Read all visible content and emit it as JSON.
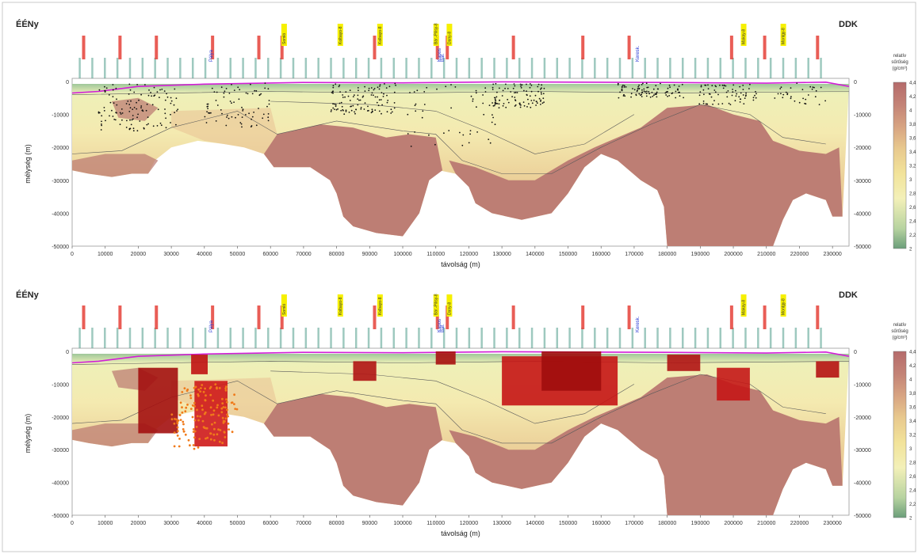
{
  "chart_data": [
    {
      "type": "heatmap",
      "title": "",
      "corner_left": "ÉÉNy",
      "corner_right": "DDK",
      "xlabel": "távolság (m)",
      "ylabel": "mélység (m)",
      "xlim": [
        0,
        235000
      ],
      "ylim": [
        -50000,
        0
      ],
      "xticks": [
        "0",
        "10000",
        "20000",
        "30000",
        "40000",
        "50000",
        "60000",
        "70000",
        "80000",
        "90000",
        "100000",
        "110000",
        "120000",
        "130000",
        "140000",
        "150000",
        "160000",
        "170000",
        "180000",
        "190000",
        "200000",
        "210000",
        "220000",
        "230000"
      ],
      "yticks_left": [
        "0",
        "-10000",
        "-20000",
        "-30000",
        "-40000",
        "-50000"
      ],
      "yticks_right": [
        "0",
        "-10000",
        "-20000",
        "-30000",
        "-40000",
        "-50000"
      ],
      "colorbar": {
        "title": "relatív sűrűség (g/cm³)",
        "ticks": [
          "4,4",
          "4,2",
          "4",
          "3,8",
          "3,6",
          "3,4",
          "3,2",
          "3",
          "2,8",
          "2,6",
          "2,4",
          "2,2",
          "2"
        ],
        "colors": [
          "#6b9e7a",
          "#b7d3a0",
          "#f3f0b8",
          "#f2e39a",
          "#e8c98e",
          "#d9a783",
          "#c48477",
          "#b56b6b"
        ]
      },
      "overlay": "earthquake hypocenters",
      "yellow_labels": [
        "Somló",
        "Kolbayo-8",
        "Kolbayo-8",
        "Bár.-Pilisy-8",
        "Dany-8",
        "Makay-8",
        "Montgy-8"
      ],
      "blue_labels": [
        "Pálya",
        "Bár.",
        "Keresk.",
        "Kapos"
      ]
    },
    {
      "type": "heatmap",
      "title": "",
      "corner_left": "ÉÉNy",
      "corner_right": "DDK",
      "xlabel": "távolság (m)",
      "ylabel": "mélység (m)",
      "xlim": [
        0,
        235000
      ],
      "ylim": [
        -50000,
        0
      ],
      "xticks": [
        "0",
        "10000",
        "20000",
        "30000",
        "40000",
        "50000",
        "60000",
        "70000",
        "80000",
        "90000",
        "100000",
        "110000",
        "120000",
        "130000",
        "140000",
        "150000",
        "160000",
        "170000",
        "180000",
        "190000",
        "200000",
        "210000",
        "220000",
        "230000"
      ],
      "yticks_left": [
        "0",
        "-10000",
        "-20000",
        "-30000",
        "-40000",
        "-50000"
      ],
      "yticks_right": [
        "0",
        "-10000",
        "-20000",
        "-30000",
        "-40000",
        "-50000"
      ],
      "colorbar": {
        "title": "relatív sűrűség (g/cm³)",
        "ticks": [
          "4,4",
          "4,2",
          "4",
          "3,8",
          "3,6",
          "3,4",
          "3,2",
          "3",
          "2,8",
          "2,6",
          "2,4",
          "2,2",
          "2"
        ],
        "colors": [
          "#6b9e7a",
          "#b7d3a0",
          "#f3f0b8",
          "#f2e39a",
          "#e8c98e",
          "#d9a783",
          "#c48477",
          "#b56b6b"
        ]
      },
      "overlay": "high-density bodies (red)",
      "yellow_labels": [
        "Somló",
        "Kolbayo-8",
        "Kolbayo-8",
        "Bár.-Pilisy-8",
        "Dany-8",
        "Makay-8",
        "Montgy-8"
      ],
      "blue_labels": [
        "Pálya",
        "Bár.",
        "Keresk.",
        "Kapos"
      ]
    }
  ]
}
